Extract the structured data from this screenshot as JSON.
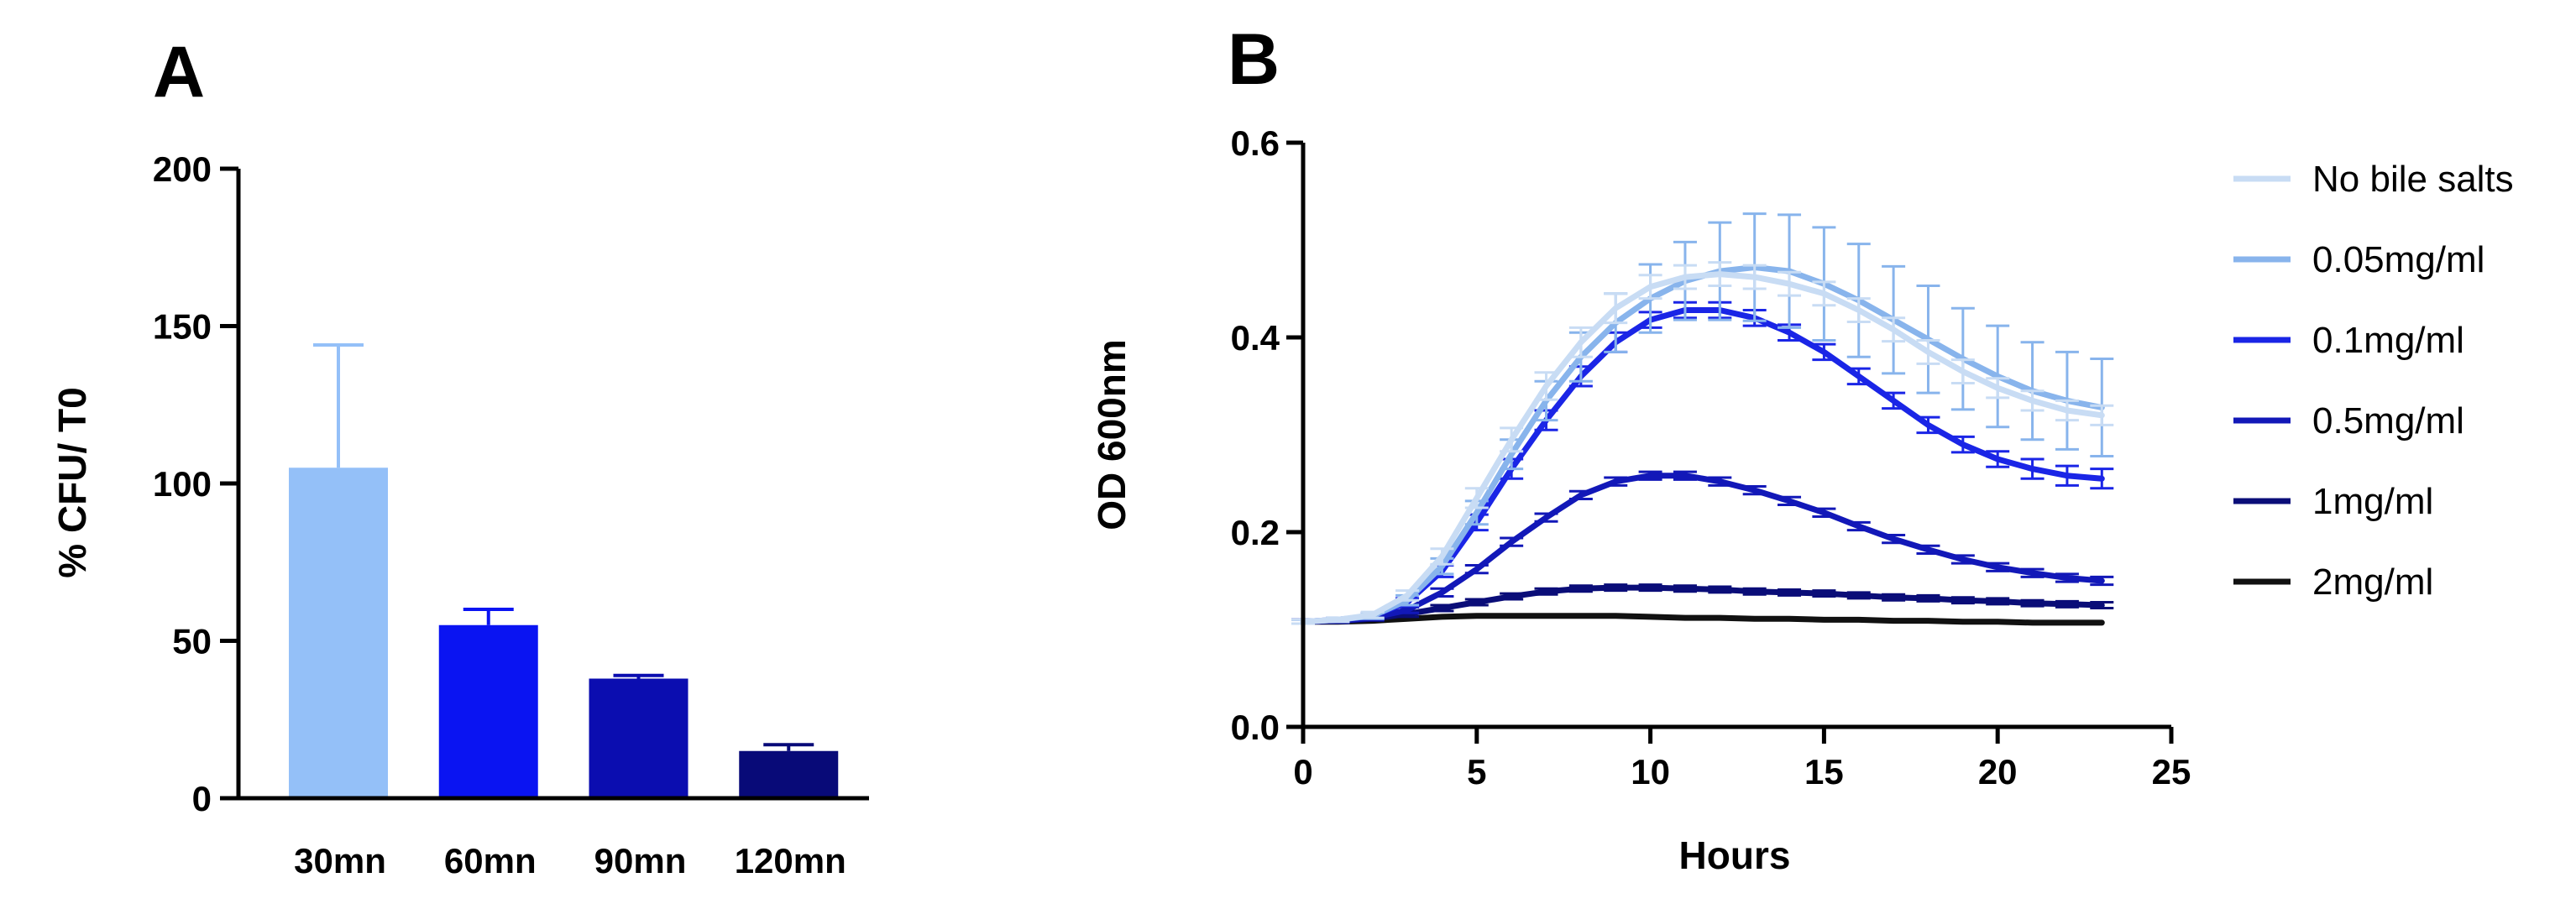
{
  "chart_data": [
    {
      "panel": "A",
      "type": "bar",
      "categories": [
        "30mn",
        "60mn",
        "90mn",
        "120mn"
      ],
      "values": [
        105,
        55,
        38,
        15
      ],
      "errors": [
        39,
        5,
        1,
        2
      ],
      "colors": [
        "#94c0f8",
        "#0a14f2",
        "#0b0db0",
        "#080a78"
      ],
      "xlabel": "",
      "ylabel": "% CFU/ T0",
      "ylim": [
        0,
        200
      ],
      "yticks": [
        0,
        50,
        100,
        150,
        200
      ]
    },
    {
      "panel": "B",
      "type": "line",
      "xlabel": "Hours",
      "ylabel": "OD 600nm",
      "xlim": [
        0,
        25
      ],
      "ylim": [
        0,
        0.6
      ],
      "xticks": [
        0,
        5,
        10,
        15,
        20,
        25
      ],
      "yticks": [
        "0.0",
        "0.2",
        "0.4",
        "0.6"
      ],
      "legend_position": "right",
      "x": [
        0,
        1,
        2,
        3,
        4,
        5,
        6,
        7,
        8,
        9,
        10,
        11,
        12,
        13,
        14,
        15,
        16,
        17,
        18,
        19,
        20,
        21,
        22,
        23
      ],
      "series": [
        {
          "name": "No bile salts",
          "color": "#c8dcf4",
          "values": [
            0.108,
            0.11,
            0.115,
            0.135,
            0.175,
            0.235,
            0.295,
            0.35,
            0.395,
            0.43,
            0.452,
            0.462,
            0.465,
            0.462,
            0.455,
            0.445,
            0.428,
            0.408,
            0.385,
            0.365,
            0.348,
            0.335,
            0.325,
            0.32
          ],
          "errors": [
            0.002,
            0.002,
            0.003,
            0.005,
            0.008,
            0.01,
            0.012,
            0.014,
            0.015,
            0.015,
            0.012,
            0.012,
            0.012,
            0.012,
            0.012,
            0.012,
            0.012,
            0.012,
            0.012,
            0.012,
            0.01,
            0.01,
            0.01,
            0.01
          ]
        },
        {
          "name": "0.05mg/ml",
          "color": "#88b4ec",
          "values": [
            0.108,
            0.11,
            0.114,
            0.13,
            0.165,
            0.22,
            0.28,
            0.335,
            0.38,
            0.415,
            0.44,
            0.458,
            0.468,
            0.472,
            0.468,
            0.455,
            0.438,
            0.418,
            0.398,
            0.378,
            0.36,
            0.345,
            0.335,
            0.328
          ],
          "errors": [
            0.002,
            0.002,
            0.003,
            0.005,
            0.008,
            0.012,
            0.015,
            0.02,
            0.025,
            0.03,
            0.035,
            0.04,
            0.05,
            0.055,
            0.058,
            0.058,
            0.058,
            0.055,
            0.055,
            0.052,
            0.052,
            0.05,
            0.05,
            0.05
          ]
        },
        {
          "name": "0.1mg/ml",
          "color": "#1a25e6",
          "values": [
            0.108,
            0.11,
            0.114,
            0.128,
            0.16,
            0.21,
            0.265,
            0.315,
            0.36,
            0.395,
            0.418,
            0.428,
            0.428,
            0.42,
            0.405,
            0.385,
            0.36,
            0.335,
            0.31,
            0.29,
            0.275,
            0.265,
            0.258,
            0.255
          ],
          "errors": [
            0.002,
            0.002,
            0.003,
            0.004,
            0.006,
            0.008,
            0.01,
            0.01,
            0.01,
            0.01,
            0.008,
            0.008,
            0.008,
            0.008,
            0.008,
            0.008,
            0.008,
            0.008,
            0.008,
            0.008,
            0.008,
            0.01,
            0.01,
            0.01
          ]
        },
        {
          "name": "0.5mg/ml",
          "color": "#1218b8",
          "values": [
            0.108,
            0.109,
            0.112,
            0.12,
            0.138,
            0.162,
            0.19,
            0.215,
            0.238,
            0.252,
            0.258,
            0.258,
            0.252,
            0.243,
            0.232,
            0.22,
            0.206,
            0.193,
            0.182,
            0.172,
            0.164,
            0.158,
            0.153,
            0.15
          ],
          "errors": [
            0.002,
            0.002,
            0.002,
            0.003,
            0.004,
            0.004,
            0.004,
            0.004,
            0.004,
            0.004,
            0.004,
            0.004,
            0.004,
            0.004,
            0.004,
            0.004,
            0.004,
            0.004,
            0.004,
            0.004,
            0.004,
            0.004,
            0.004,
            0.004
          ]
        },
        {
          "name": "1mg/ml",
          "color": "#0a0d78",
          "values": [
            0.108,
            0.109,
            0.111,
            0.116,
            0.122,
            0.128,
            0.134,
            0.139,
            0.142,
            0.143,
            0.143,
            0.142,
            0.141,
            0.139,
            0.138,
            0.137,
            0.135,
            0.133,
            0.132,
            0.13,
            0.129,
            0.127,
            0.126,
            0.125
          ],
          "errors": [
            0.002,
            0.002,
            0.002,
            0.003,
            0.003,
            0.003,
            0.003,
            0.003,
            0.003,
            0.003,
            0.003,
            0.003,
            0.003,
            0.003,
            0.003,
            0.003,
            0.003,
            0.003,
            0.003,
            0.003,
            0.003,
            0.003,
            0.003,
            0.003
          ]
        },
        {
          "name": "2mg/ml",
          "color": "#111111",
          "values": [
            0.108,
            0.108,
            0.109,
            0.111,
            0.113,
            0.114,
            0.114,
            0.114,
            0.114,
            0.114,
            0.113,
            0.112,
            0.112,
            0.111,
            0.111,
            0.11,
            0.11,
            0.109,
            0.109,
            0.108,
            0.108,
            0.107,
            0.107,
            0.107
          ],
          "errors": [
            0.001,
            0.001,
            0.001,
            0.001,
            0.001,
            0.001,
            0.001,
            0.001,
            0.001,
            0.001,
            0.001,
            0.001,
            0.001,
            0.001,
            0.001,
            0.001,
            0.001,
            0.001,
            0.001,
            0.001,
            0.001,
            0.001,
            0.001,
            0.001
          ]
        }
      ]
    }
  ]
}
